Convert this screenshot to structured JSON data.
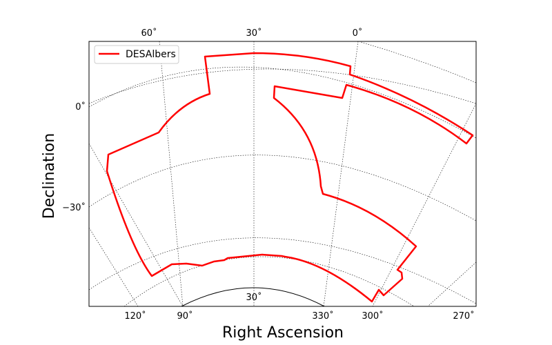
{
  "chart_data": {
    "type": "line",
    "projection": "Albers equal-area (conic)",
    "xlabel": "Right Ascension",
    "ylabel": "Declination",
    "grid": true,
    "legend_placement": "top-left",
    "series": [
      {
        "name": "DESAlbers",
        "color": "#ff0000",
        "closed": true,
        "note": "DES survey footprint outline"
      }
    ],
    "ra_ticks_top": [
      "60˚",
      "30˚",
      "0˚"
    ],
    "ra_ticks_bottom": [
      "120˚",
      "90˚",
      "330˚",
      "300˚",
      "270˚"
    ],
    "dec_ticks_left": [
      "0˚",
      "−30˚"
    ],
    "dec_label_inner": "30˚"
  }
}
